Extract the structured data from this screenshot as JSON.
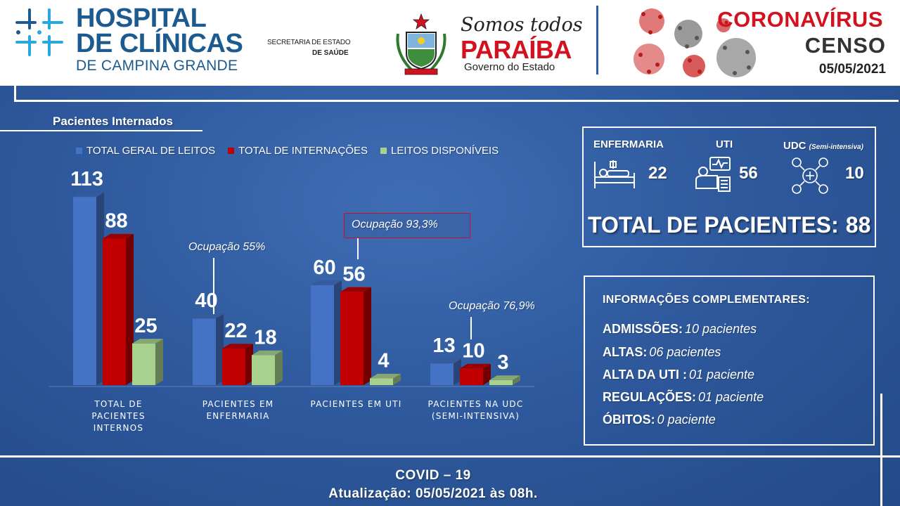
{
  "header": {
    "hospital_line1": "HOSPITAL",
    "hospital_line2": "DE CLÍNICAS",
    "hospital_sub": "DE CAMPINA GRANDE",
    "secretaria_line1": "SECRETARIA DE ESTADO",
    "secretaria_line2": "DE SAÚDE",
    "somos": "Somos todos",
    "paraiba": "PARAÍBA",
    "governo": "Governo do Estado",
    "title": "CORONAVÍRUS",
    "subtitle": "CENSO",
    "date": "05/05/2021"
  },
  "section_title": "Pacientes Internados",
  "colors": {
    "leitos": "#4472c4",
    "internacoes": "#c00000",
    "disponiveis": "#a9d18e",
    "accent_red": "#d3111f"
  },
  "chart_data": {
    "type": "bar",
    "categories": [
      [
        "TOTAL DE",
        "PACIENTES",
        "INTERNOS"
      ],
      [
        "PACIENTES EM",
        "ENFERMARIA"
      ],
      [
        "PACIENTES EM UTI"
      ],
      [
        "PACIENTES NA UDC",
        "(SEMI-INTENSIVA)"
      ]
    ],
    "series": [
      {
        "name": "TOTAL GERAL DE LEITOS",
        "color": "#4472c4",
        "values": [
          113,
          40,
          60,
          13
        ]
      },
      {
        "name": "TOTAL DE INTERNAÇÕES",
        "color": "#c00000",
        "values": [
          88,
          22,
          56,
          10
        ]
      },
      {
        "name": "LEITOS DISPONÍVEIS",
        "color": "#a9d18e",
        "values": [
          25,
          18,
          4,
          3
        ]
      }
    ],
    "annotations": [
      "Ocupação 55%",
      "Ocupação 93,3%",
      "Ocupação 76,9%"
    ],
    "legend_position": "top",
    "grid": false
  },
  "summary": {
    "enfermaria_label": "ENFERMARIA",
    "enfermaria_value": "22",
    "uti_label": "UTI",
    "uti_value": "56",
    "udc_label": "UDC",
    "udc_sub": "(Semi-intensiva)",
    "udc_value": "10",
    "total_label": "TOTAL DE PACIENTES:",
    "total_value": "88"
  },
  "info": {
    "heading": "INFORMAÇÕES COMPLEMENTARES:",
    "rows": [
      {
        "label": "ADMISSÕES:",
        "value": "10 pacientes"
      },
      {
        "label": "ALTAS:",
        "value": "06 pacientes"
      },
      {
        "label": "ALTA DA UTI :",
        "value": "01 paciente"
      },
      {
        "label": "REGULAÇÕES:",
        "value": "01 paciente"
      },
      {
        "label": "ÓBITOS:",
        "value": "0 paciente"
      }
    ]
  },
  "footer": {
    "line1": "COVID – 19",
    "line2": "Atualização: 05/05/2021 às 08h."
  }
}
